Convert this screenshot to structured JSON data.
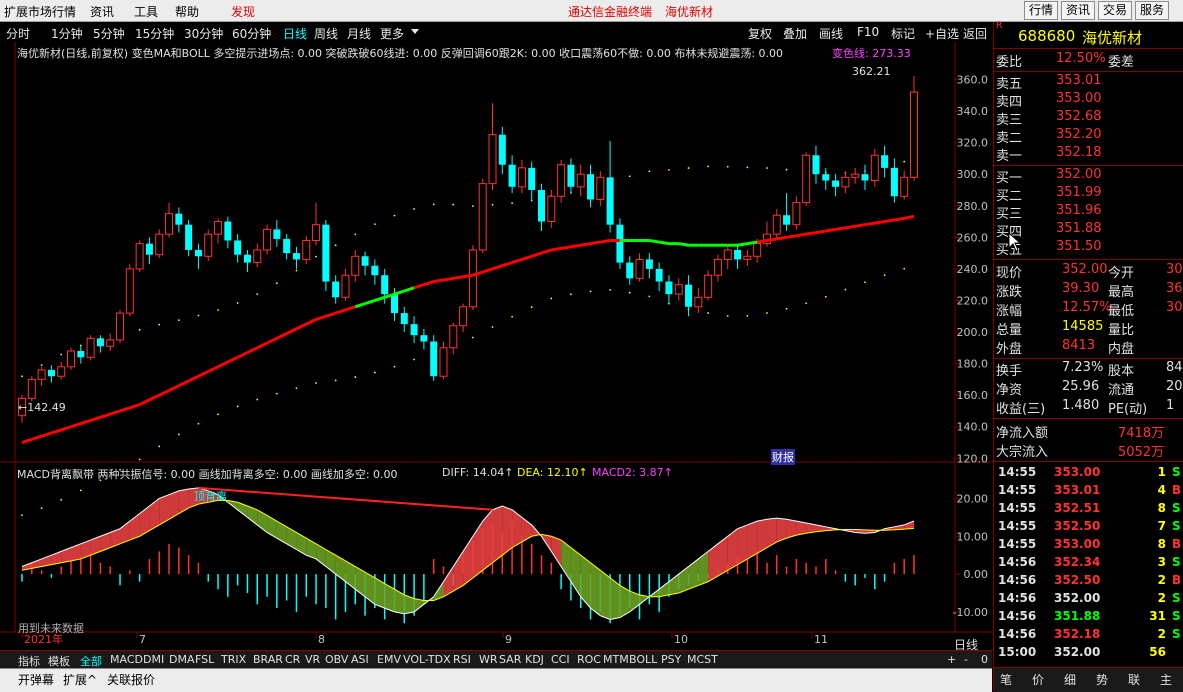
{
  "menu": {
    "items": [
      "扩展市场行情",
      "资讯",
      "工具",
      "帮助"
    ],
    "highlight": "发现",
    "promo": [
      "通达信金融终端",
      "海优新材"
    ],
    "right_buttons": [
      "行情",
      "资讯",
      "交易",
      "服务"
    ]
  },
  "periods": [
    "分时",
    "1分钟",
    "5分钟",
    "15分钟",
    "30分钟",
    "60分钟",
    "日线",
    "周线",
    "月线",
    "更多"
  ],
  "active_period": "日线",
  "toolbar": [
    "复权",
    "叠加",
    "画线",
    "F10",
    "标记",
    "+自选",
    "返回"
  ],
  "main": {
    "title_line": "海优新材(日线,前复权) 变色MA和BOLL  多空提示进场点: 0.00 突破跌破60线进: 0.00 反弹回调60跟2K: 0.00 收口震荡60不做: 0.00 布林未规避震荡: 0.00",
    "ma_label": "变色线: 273.33",
    "high_label": "362.21",
    "low_label": "142.49",
    "y_ticks": [
      "360.0",
      "340.0",
      "320.0",
      "300.0",
      "280.0",
      "260.0",
      "240.0",
      "220.0",
      "200.0",
      "180.0",
      "160.0",
      "140.0",
      "120.0"
    ],
    "markers": [
      "财报"
    ]
  },
  "macd": {
    "title": "MACD背离飘带  两种共振信号: 0.00 画线加背离多空: 0.00 画线加多空: 0.00",
    "diff_label": "DIFF: 14.04↑",
    "dea_label": "DEA: 12.10↑",
    "macd2_label": "MACD2: 3.87↑",
    "divergence_label": "顶背离",
    "y_ticks": [
      "20.00",
      "10.00",
      "0.00",
      "-10.00"
    ],
    "note": "用到未来数据"
  },
  "x_axis": {
    "labels": [
      "2021年",
      "7",
      "8",
      "9",
      "10",
      "11"
    ],
    "corner": "日线",
    "controls": [
      "+",
      "-",
      "0"
    ]
  },
  "indicator_tabs": [
    "指标",
    "模板",
    "全部",
    "MACD",
    "DMI",
    "DMA",
    "FSL",
    "TRIX",
    "BRAR",
    "CR",
    "VR",
    "OBV",
    "ASI",
    "EMV",
    "VOL-TDX",
    "RSI",
    "WR",
    "SAR",
    "KDJ",
    "CCI",
    "ROC",
    "MTM",
    "BOLL",
    "PSY",
    "MCST"
  ],
  "active_indicator_tab": "全部",
  "bottom_bar": [
    "开弹幕",
    "扩展^",
    "关联报价"
  ],
  "stock": {
    "badge": "R",
    "code": "688680",
    "name": "海优新材"
  },
  "order_book": {
    "weibi_label": "委比",
    "weibi": "12.50%",
    "weicha_label": "委差",
    "asks": [
      {
        "label": "卖五",
        "price": "353.01"
      },
      {
        "label": "卖四",
        "price": "353.00"
      },
      {
        "label": "卖三",
        "price": "352.68"
      },
      {
        "label": "卖二",
        "price": "352.20"
      },
      {
        "label": "卖一",
        "price": "352.18"
      }
    ],
    "bids": [
      {
        "label": "买一",
        "price": "352.00"
      },
      {
        "label": "买二",
        "price": "351.99"
      },
      {
        "label": "买三",
        "price": "351.96"
      },
      {
        "label": "买四",
        "price": "351.88"
      },
      {
        "label": "买五",
        "price": "351.50"
      }
    ]
  },
  "quote": [
    {
      "l1": "现价",
      "v1": "352.00",
      "l2": "今开",
      "v2": "30"
    },
    {
      "l1": "涨跌",
      "v1": "39.30",
      "l2": "最高",
      "v2": "36"
    },
    {
      "l1": "涨幅",
      "v1": "12.57%",
      "l2": "最低",
      "v2": "30"
    },
    {
      "l1": "总量",
      "v1": "14585",
      "l2": "量比",
      "v2": ""
    },
    {
      "l1": "外盘",
      "v1": "8413",
      "l2": "内盘",
      "v2": ""
    },
    {
      "l1": "换手",
      "v1": "7.23%",
      "l2": "股本",
      "v2": "84"
    },
    {
      "l1": "净资",
      "v1": "25.96",
      "l2": "流通",
      "v2": "20"
    },
    {
      "l1": "收益(三)",
      "v1": "1.480",
      "l2": "PE(动)",
      "v2": "1"
    }
  ],
  "flows": [
    {
      "label": "净流入额",
      "value": "7418万"
    },
    {
      "label": "大宗流入",
      "value": "5052万"
    }
  ],
  "ticks": [
    {
      "time": "14:55",
      "price": "353.00",
      "vol": "1",
      "side": "S"
    },
    {
      "time": "14:55",
      "price": "353.01",
      "vol": "4",
      "side": "B"
    },
    {
      "time": "14:55",
      "price": "352.51",
      "vol": "8",
      "side": "S"
    },
    {
      "time": "14:55",
      "price": "352.50",
      "vol": "7",
      "side": "S"
    },
    {
      "time": "14:55",
      "price": "353.00",
      "vol": "8",
      "side": "B"
    },
    {
      "time": "14:56",
      "price": "352.34",
      "vol": "3",
      "side": "S"
    },
    {
      "time": "14:56",
      "price": "352.50",
      "vol": "2",
      "side": "B"
    },
    {
      "time": "14:56",
      "price": "352.00",
      "vol": "2",
      "side": "S"
    },
    {
      "time": "14:56",
      "price": "351.88",
      "vol": "31",
      "side": "S"
    },
    {
      "time": "14:56",
      "price": "352.18",
      "vol": "2",
      "side": "S"
    },
    {
      "time": "15:00",
      "price": "352.00",
      "vol": "56",
      "side": ""
    }
  ],
  "right_tabs": [
    "笔",
    "价",
    "细",
    "势",
    "联",
    "主"
  ],
  "colors": {
    "up": "#ff3232",
    "down": "#00ffff",
    "ma_up": "#ff0000",
    "ma_flat": "#00ff00",
    "axis": "#800000",
    "yellow": "#ffff00",
    "macd_up_fill": "#e84040",
    "macd_down_fill": "#6aa020"
  },
  "chart_data": {
    "type": "candlestick",
    "y_range": [
      124,
      366
    ],
    "candles": [
      [
        147,
        158,
        142.49,
        160
      ],
      [
        158,
        170,
        156,
        172
      ],
      [
        170,
        176,
        166,
        178
      ],
      [
        176,
        172,
        168,
        179
      ],
      [
        172,
        178,
        170,
        181
      ],
      [
        178,
        188,
        176,
        190
      ],
      [
        188,
        184,
        180,
        191
      ],
      [
        184,
        196,
        182,
        198
      ],
      [
        196,
        191,
        187,
        198
      ],
      [
        191,
        195,
        188,
        199
      ],
      [
        195,
        212,
        193,
        214
      ],
      [
        212,
        240,
        210,
        243
      ],
      [
        240,
        256,
        238,
        258
      ],
      [
        256,
        249,
        243,
        260
      ],
      [
        249,
        262,
        247,
        265
      ],
      [
        262,
        275,
        260,
        282
      ],
      [
        275,
        268,
        263,
        279
      ],
      [
        268,
        252,
        248,
        271
      ],
      [
        252,
        248,
        240,
        256
      ],
      [
        248,
        262,
        245,
        265
      ],
      [
        262,
        270,
        256,
        272
      ],
      [
        270,
        258,
        253,
        273
      ],
      [
        258,
        249,
        244,
        262
      ],
      [
        249,
        244,
        238,
        252
      ],
      [
        244,
        252,
        241,
        256
      ],
      [
        252,
        265,
        249,
        268
      ],
      [
        265,
        259,
        254,
        271
      ],
      [
        259,
        250,
        246,
        262
      ],
      [
        250,
        246,
        240,
        254
      ],
      [
        246,
        258,
        243,
        261
      ],
      [
        258,
        268,
        255,
        282
      ],
      [
        268,
        232,
        226,
        271
      ],
      [
        232,
        222,
        218,
        236
      ],
      [
        222,
        236,
        220,
        240
      ],
      [
        236,
        248,
        232,
        252
      ],
      [
        248,
        242,
        236,
        251
      ],
      [
        242,
        236,
        230,
        246
      ],
      [
        236,
        224,
        218,
        240
      ],
      [
        224,
        212,
        207,
        228
      ],
      [
        212,
        205,
        200,
        216
      ],
      [
        205,
        198,
        193,
        210
      ],
      [
        198,
        194,
        189,
        202
      ],
      [
        194,
        172,
        169,
        198
      ],
      [
        172,
        190,
        170,
        194
      ],
      [
        190,
        204,
        186,
        206
      ],
      [
        204,
        216,
        200,
        218
      ],
      [
        216,
        252,
        214,
        255
      ],
      [
        252,
        294,
        250,
        297
      ],
      [
        294,
        325,
        290,
        345
      ],
      [
        325,
        306,
        300,
        330
      ],
      [
        306,
        292,
        288,
        312
      ],
      [
        292,
        304,
        288,
        309
      ],
      [
        304,
        290,
        284,
        308
      ],
      [
        290,
        270,
        264,
        294
      ],
      [
        270,
        286,
        266,
        290
      ],
      [
        286,
        306,
        282,
        309
      ],
      [
        306,
        292,
        288,
        310
      ],
      [
        292,
        300,
        286,
        306
      ],
      [
        300,
        284,
        279,
        306
      ],
      [
        284,
        298,
        280,
        302
      ],
      [
        298,
        268,
        263,
        321
      ],
      [
        268,
        244,
        240,
        272
      ],
      [
        244,
        234,
        230,
        248
      ],
      [
        234,
        246,
        232,
        250
      ],
      [
        246,
        240,
        234,
        250
      ],
      [
        240,
        232,
        226,
        244
      ],
      [
        232,
        224,
        218,
        236
      ],
      [
        224,
        230,
        220,
        234
      ],
      [
        230,
        216,
        210,
        236
      ],
      [
        216,
        222,
        212,
        228
      ],
      [
        222,
        236,
        220,
        239
      ],
      [
        236,
        246,
        232,
        249
      ],
      [
        246,
        252,
        240,
        255
      ],
      [
        252,
        246,
        240,
        256
      ],
      [
        246,
        248,
        242,
        252
      ],
      [
        248,
        256,
        244,
        259
      ],
      [
        256,
        262,
        254,
        270
      ],
      [
        262,
        274,
        258,
        278
      ],
      [
        274,
        268,
        264,
        288
      ],
      [
        268,
        282,
        265,
        286
      ],
      [
        282,
        312,
        280,
        314
      ],
      [
        312,
        300,
        294,
        318
      ],
      [
        300,
        296,
        290,
        304
      ],
      [
        296,
        292,
        286,
        300
      ],
      [
        292,
        298,
        288,
        302
      ],
      [
        298,
        300,
        294,
        304
      ],
      [
        300,
        296,
        290,
        306
      ],
      [
        296,
        312,
        292,
        316
      ],
      [
        312,
        304,
        298,
        318
      ],
      [
        304,
        286,
        282,
        310
      ],
      [
        286,
        298,
        284,
        302
      ],
      [
        298,
        352,
        296,
        362.21
      ]
    ],
    "ma": [
      130,
      132,
      134,
      136,
      138,
      140,
      142,
      144,
      146,
      148,
      150,
      152,
      154,
      157,
      160,
      163,
      166,
      169,
      172,
      175,
      178,
      181,
      184,
      187,
      190,
      193,
      196,
      199,
      202,
      205,
      208,
      210,
      212,
      214,
      216,
      218,
      220,
      222,
      224,
      226,
      228,
      230,
      232,
      233,
      234,
      235,
      236,
      238,
      240,
      242,
      244,
      246,
      248,
      250,
      252,
      253,
      254,
      255,
      256,
      257,
      258,
      258,
      258,
      258,
      258,
      257,
      256,
      256,
      255,
      255,
      255,
      255,
      255,
      255,
      256,
      257,
      258,
      259,
      260,
      261,
      262,
      263,
      264,
      265,
      266,
      267,
      268,
      269,
      270,
      271,
      272,
      273.33
    ],
    "ma_green_ranges": [
      [
        34,
        40
      ],
      [
        61,
        75
      ]
    ],
    "macd_range": [
      -14,
      27
    ],
    "diff": [
      2,
      3,
      4,
      5,
      6,
      7,
      8,
      9,
      10,
      11,
      12,
      14,
      16,
      18,
      20,
      21,
      22,
      22.5,
      22.8,
      22,
      21,
      19,
      17,
      15,
      13,
      11,
      9.5,
      8,
      6.5,
      5,
      4,
      2,
      0,
      -2,
      -4,
      -6,
      -8,
      -9,
      -10,
      -10.5,
      -10,
      -8,
      -6,
      -2,
      2,
      6,
      10,
      14,
      17,
      18,
      17,
      15,
      13,
      10,
      6,
      2,
      -2,
      -6,
      -9,
      -11,
      -12,
      -11.5,
      -10,
      -8,
      -6,
      -4,
      -2,
      0,
      2,
      4,
      6,
      8,
      10,
      12,
      13,
      14,
      14.5,
      14.8,
      14.5,
      14,
      13.5,
      13,
      12.5,
      12,
      11.5,
      11,
      10.8,
      11,
      12,
      12.5,
      13,
      14.04
    ],
    "dea": [
      1,
      1.5,
      2,
      2.5,
      3,
      3.5,
      4,
      5,
      6,
      7,
      8,
      9,
      10,
      11.5,
      13,
      14.5,
      16,
      17.5,
      18.5,
      19,
      19.5,
      19.5,
      19,
      18,
      17,
      15.5,
      14,
      12.5,
      11,
      9.5,
      8,
      6.5,
      5,
      3.5,
      2,
      0.5,
      -1,
      -2.5,
      -4,
      -5.5,
      -6.5,
      -7,
      -7,
      -6,
      -4.5,
      -3,
      -1,
      1,
      3,
      5,
      7,
      8.5,
      10,
      10.5,
      10,
      9,
      7,
      5,
      3,
      1,
      -1,
      -3,
      -4.5,
      -5.5,
      -6,
      -6,
      -5.5,
      -5,
      -4,
      -3,
      -2,
      -0.5,
      1,
      2.5,
      4,
      5.5,
      7,
      8.5,
      9.5,
      10.3,
      10.8,
      11.2,
      11.5,
      11.7,
      11.8,
      11.8,
      11.7,
      11.6,
      11.6,
      11.7,
      11.9,
      12.1
    ],
    "bars": [
      -2,
      3,
      1,
      -1,
      2,
      4,
      5,
      6,
      3,
      2,
      -3,
      1,
      -2,
      4,
      6,
      8,
      7,
      5,
      3,
      -2,
      -4,
      -6,
      -3,
      -5,
      -8,
      -6,
      -9,
      -7,
      -10,
      -6,
      -8,
      -9,
      -12,
      -10,
      -8,
      -11,
      -9,
      -12,
      -10,
      -13,
      -11,
      -8,
      4,
      2,
      -3,
      6,
      9,
      12,
      13,
      11,
      14,
      10,
      8,
      5,
      3,
      -4,
      -7,
      -9,
      -12,
      -10,
      -13,
      -11,
      -9,
      -12,
      -8,
      -10,
      -6,
      -4,
      -3,
      -2,
      -1,
      2,
      3,
      5,
      4,
      6,
      3,
      5,
      2,
      4,
      3,
      2,
      4,
      1,
      -2,
      -3,
      -1,
      -4,
      -2,
      3,
      4,
      5
    ],
    "green_ranges": [
      [
        20,
        43
      ],
      [
        55,
        70
      ]
    ]
  }
}
